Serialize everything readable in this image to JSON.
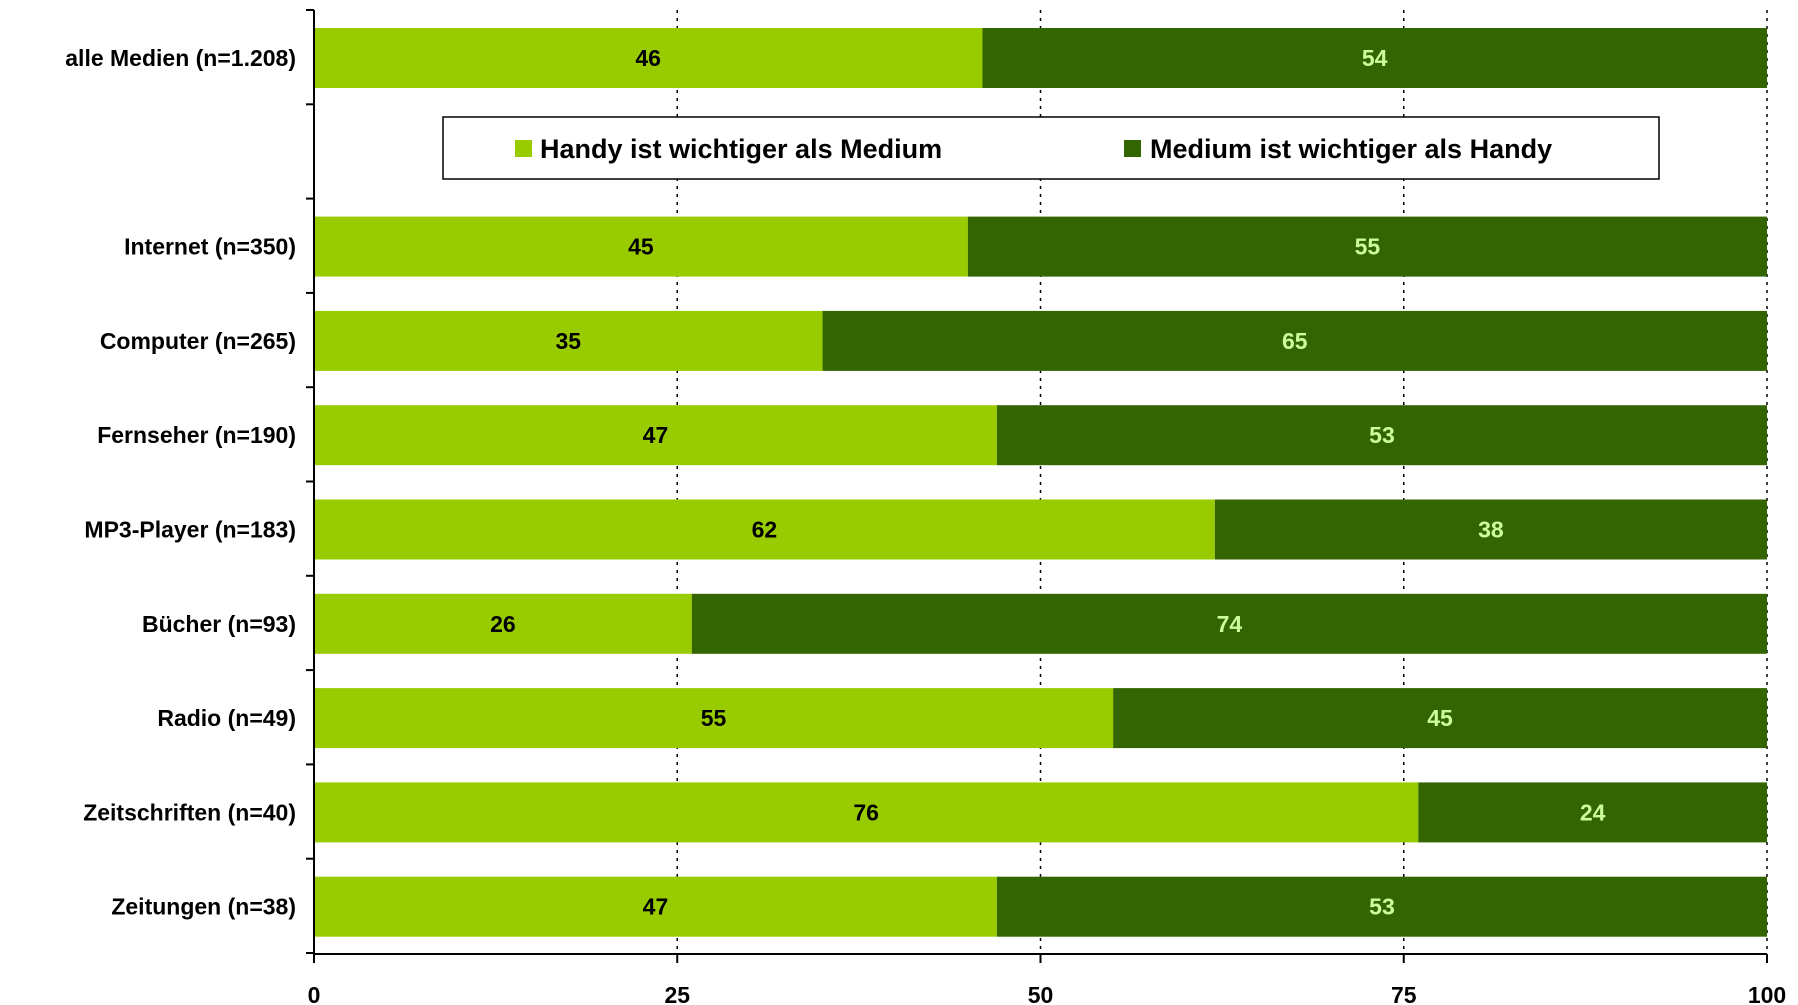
{
  "chart_data": {
    "type": "bar",
    "orientation": "horizontal",
    "stacked": true,
    "categories": [
      "alle Medien (n=1.208)",
      "Internet (n=350)",
      "Computer (n=265)",
      "Fernseher (n=190)",
      "MP3-Player (n=183)",
      "Bücher (n=93)",
      "Radio (n=49)",
      "Zeitschriften (n=40)",
      "Zeitungen (n=38)"
    ],
    "series": [
      {
        "name": "Handy ist wichtiger als Medium",
        "color": "#99cc00",
        "label_color": "#000000",
        "values": [
          46,
          45,
          35,
          47,
          62,
          26,
          55,
          76,
          47
        ]
      },
      {
        "name": "Medium ist wichtiger als Handy",
        "color": "#336600",
        "label_color": "#ccff99",
        "values": [
          54,
          55,
          65,
          53,
          38,
          74,
          45,
          24,
          53
        ]
      }
    ],
    "x_ticks": [
      0,
      25,
      50,
      75,
      100
    ],
    "xlim": [
      0,
      100
    ],
    "grid": "vertical dotted",
    "legend_position": "top, below first bar"
  }
}
